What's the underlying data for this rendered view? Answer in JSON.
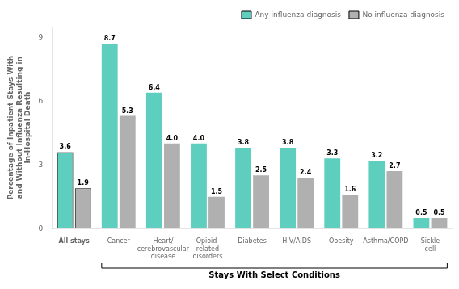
{
  "chart_data": {
    "type": "bar",
    "categories": [
      "All stays",
      "Cancer",
      "Heart/\ncerebrovascular\ndisease",
      "Opioid-\nrelated\ndisorders",
      "Diabetes",
      "HIV/AIDS",
      "Obesity",
      "Asthma/COPD",
      "Sickle\ncell"
    ],
    "series": [
      {
        "name": "Any influenza diagnosis",
        "color": "#5ecfbe",
        "values": [
          3.6,
          8.7,
          6.4,
          4.0,
          3.8,
          3.8,
          3.3,
          3.2,
          0.5
        ],
        "value_labels": [
          "3.6",
          "8.7",
          "6.4",
          "4.0",
          "3.8",
          "3.8",
          "3.3",
          "3.2",
          "0.5"
        ]
      },
      {
        "name": "No influenza diagnosis",
        "color": "#b0b0b0",
        "values": [
          1.9,
          5.3,
          4.0,
          1.5,
          2.5,
          2.4,
          1.6,
          2.7,
          0.5
        ],
        "value_labels": [
          "1.9",
          "5.3",
          "4.0",
          "1.5",
          "2.5",
          "2.4",
          "1.6",
          "2.7",
          "0.5"
        ]
      }
    ],
    "ylabel": "Percentage of Inpatient Stays With\nand Without Influenza Resulting in\nIn-Hospital Death",
    "ylim": [
      0,
      9.5
    ],
    "yticks": [
      0,
      3,
      6,
      9
    ],
    "grid": false,
    "legend": "upper right",
    "data_labels": true,
    "annotations": [
      "Stays With Select Conditions"
    ]
  }
}
